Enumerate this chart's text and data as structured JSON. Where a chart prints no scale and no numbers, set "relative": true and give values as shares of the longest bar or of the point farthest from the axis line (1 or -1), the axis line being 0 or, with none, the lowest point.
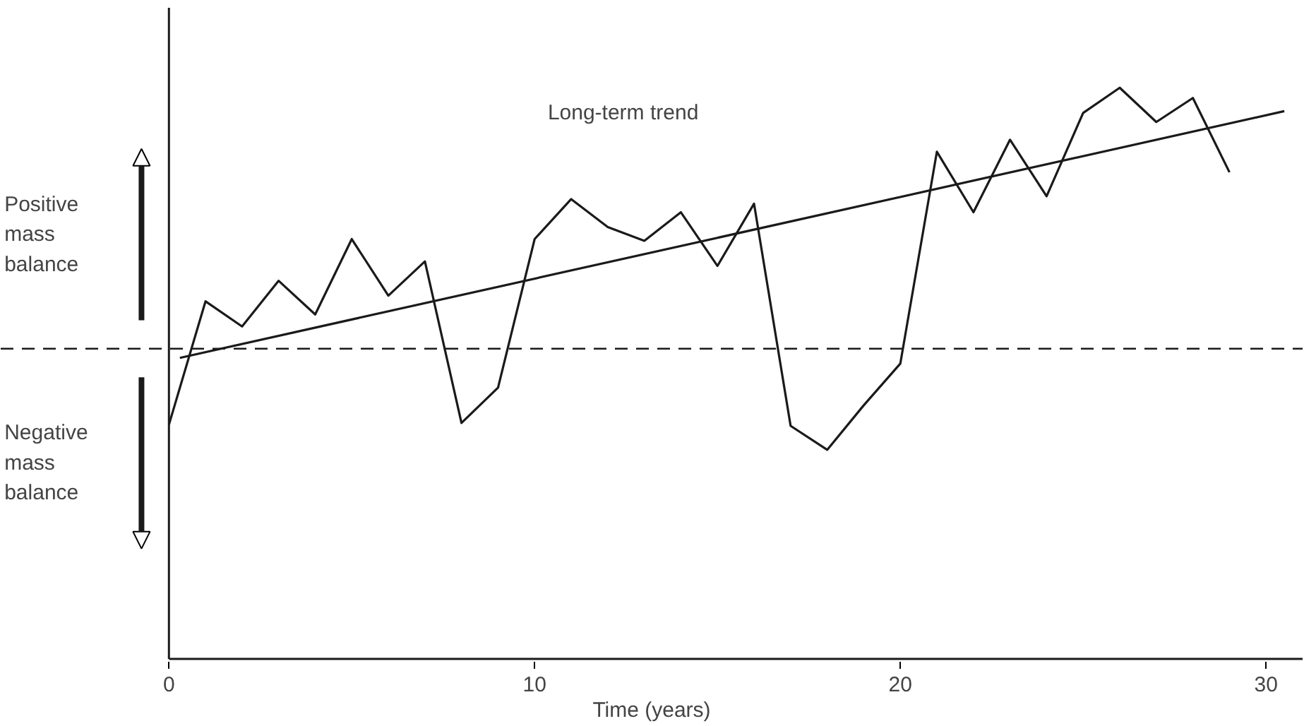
{
  "chart_data": {
    "type": "line",
    "relative": true,
    "xlabel": "Time (years)",
    "xlim": [
      0,
      31
    ],
    "xticks": [
      0,
      10,
      20,
      30
    ],
    "grid": false,
    "marker": "none",
    "line_style": "solid",
    "x": [
      0,
      1,
      2,
      3,
      4,
      5,
      6,
      7,
      8,
      9,
      10,
      11,
      12,
      13,
      14,
      15,
      16,
      17,
      18,
      19,
      20,
      21,
      22,
      23,
      24,
      25,
      26,
      27,
      28,
      29
    ],
    "series": [
      {
        "color": "#1a1a1a",
        "values": [
          0.41,
          0.626,
          0.582,
          0.662,
          0.603,
          0.735,
          0.636,
          0.696,
          0.413,
          0.475,
          0.735,
          0.805,
          0.756,
          0.732,
          0.782,
          0.688,
          0.797,
          0.408,
          0.366,
          0.444,
          0.517,
          0.888,
          0.782,
          0.909,
          0.81,
          0.956,
          1,
          0.94,
          0.982,
          0.852
        ]
      },
      {
        "type": "line",
        "color": "#1a1a1a",
        "x": [
          0.3,
          30.5
        ],
        "values": [
          0.527,
          0.959
        ]
      }
    ],
    "ref_lines": [
      {
        "axis": "y",
        "value": 0.543,
        "color": "#1a1a1a",
        "line_style": "dashed"
      }
    ],
    "annotations": [
      "Positive mass balance",
      "Negative mass balance",
      "Long-term trend"
    ]
  }
}
